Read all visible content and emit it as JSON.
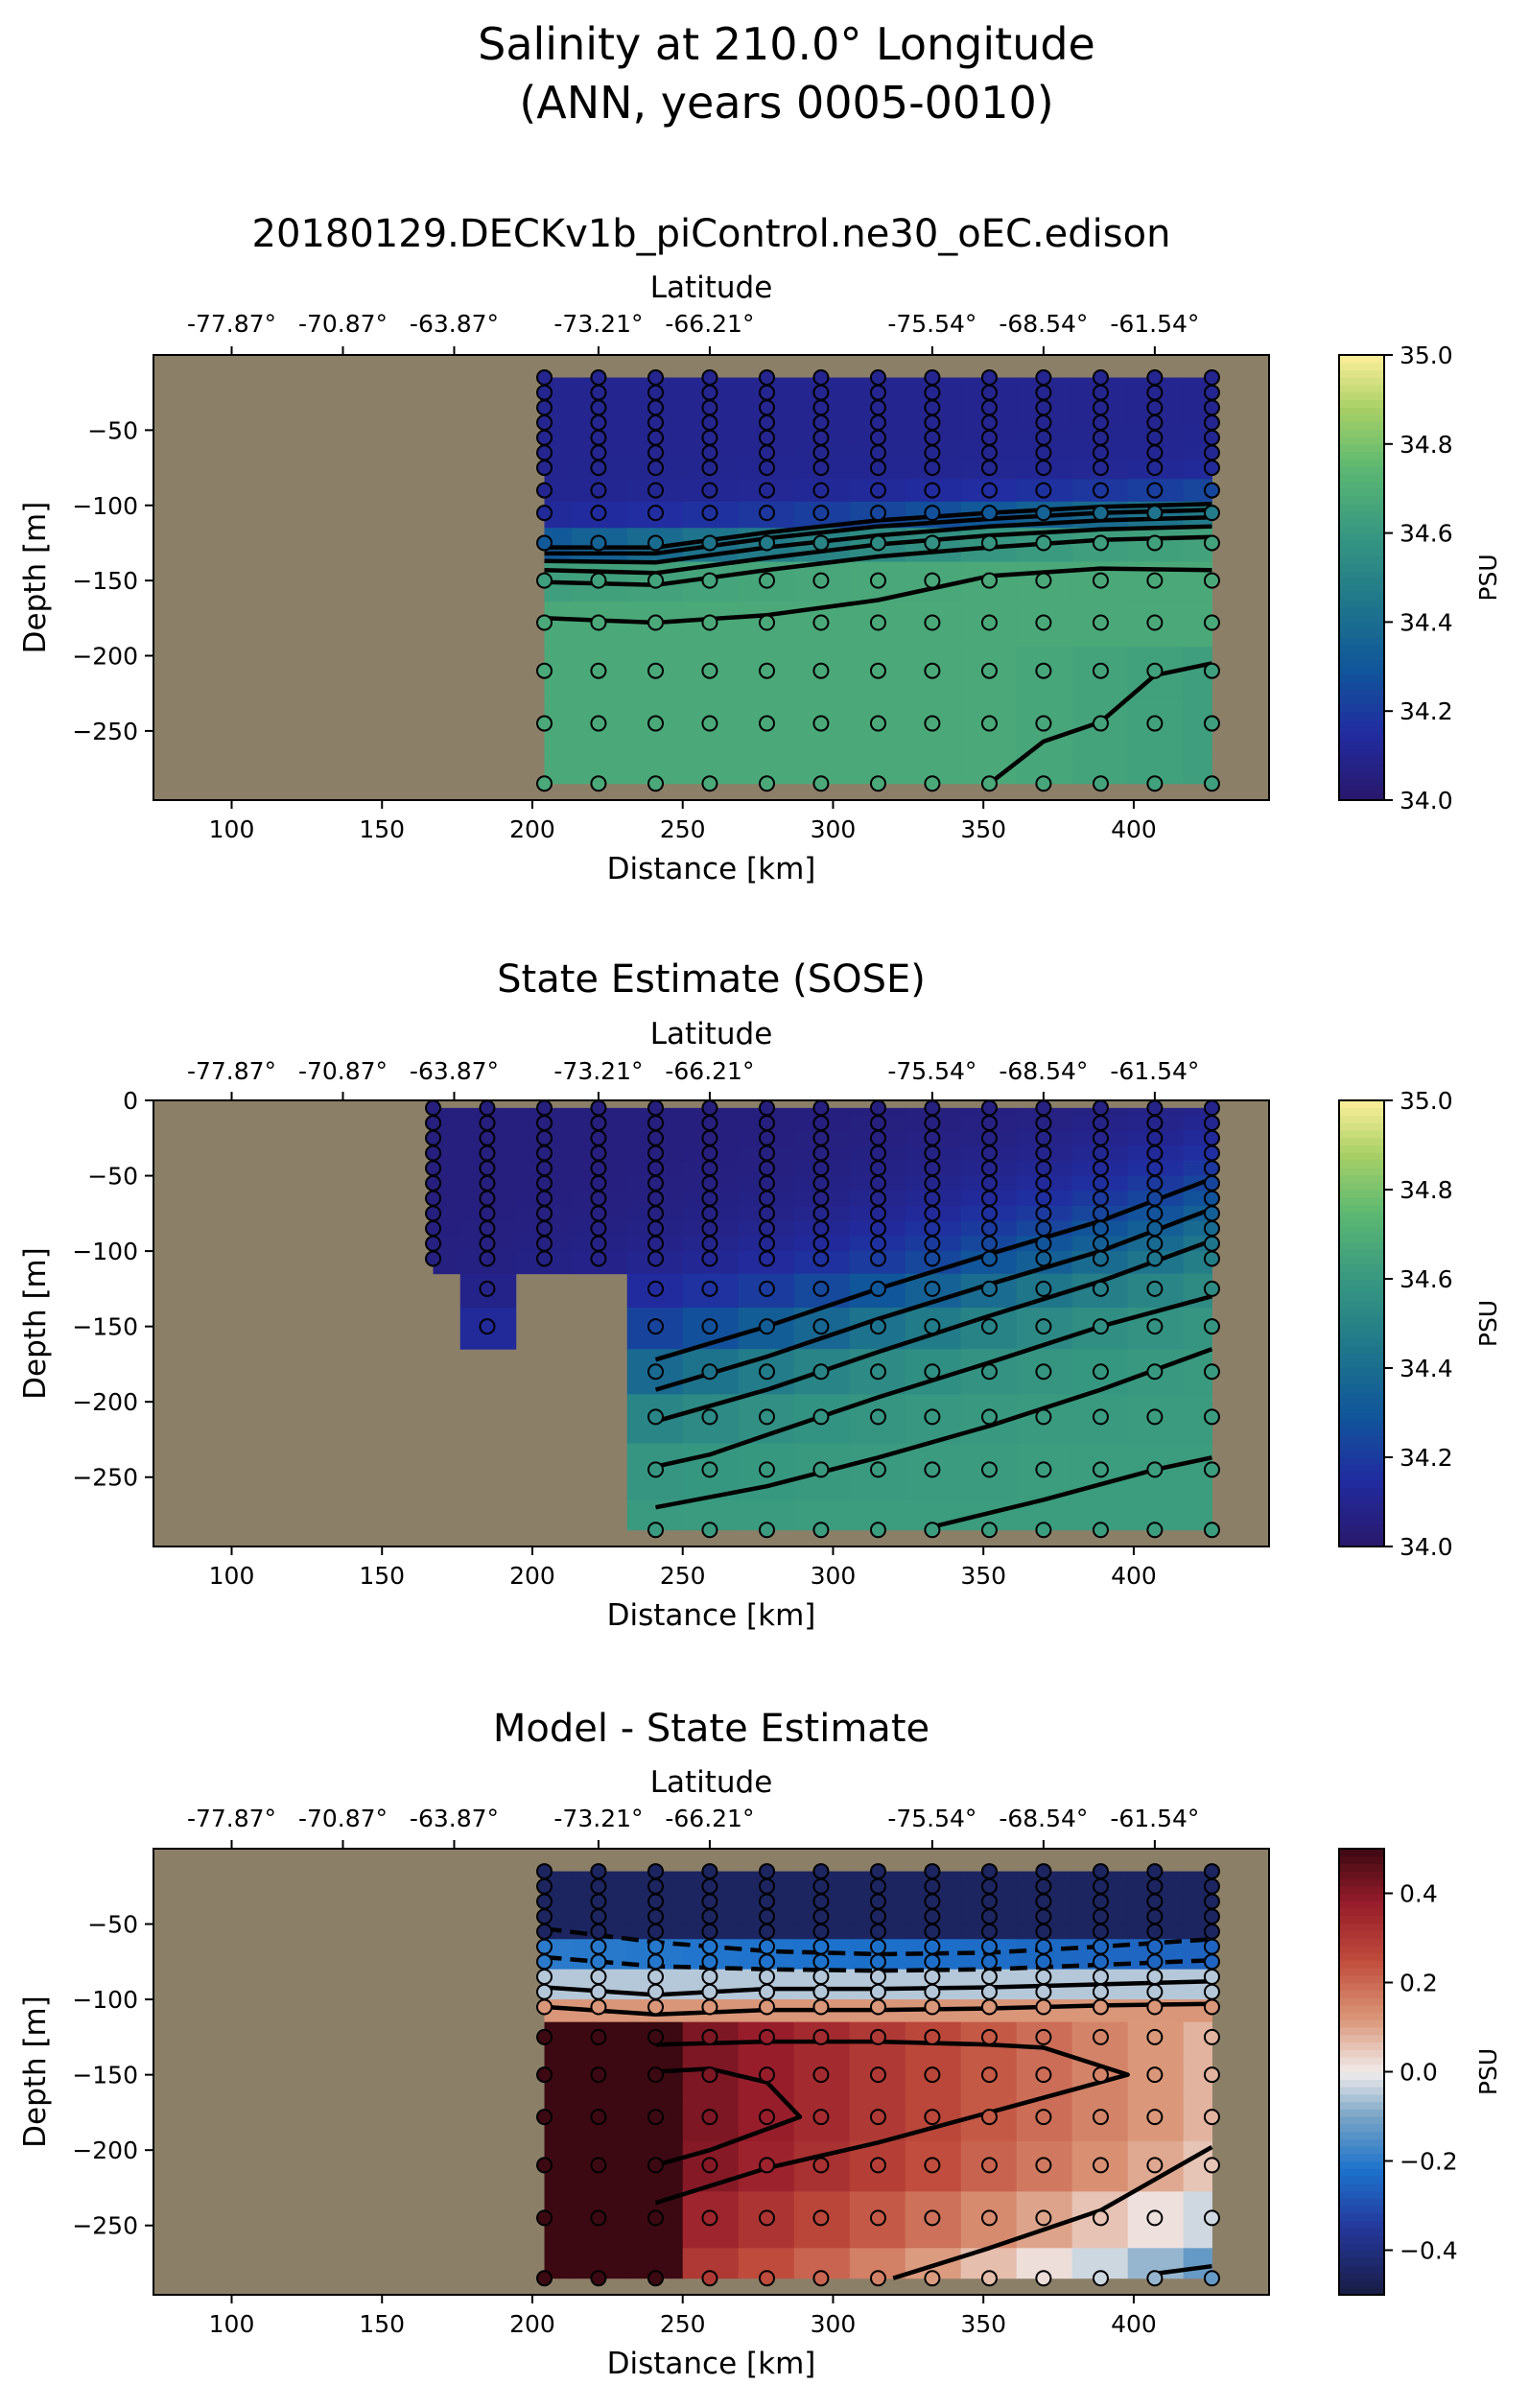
{
  "figure": {
    "title_line1": "Salinity at 210.0° Longitude",
    "title_line2": "(ANN, years 0005-0010)"
  },
  "colors": {
    "land": "#8c7f68",
    "dot_edge": "#000000",
    "contour": "#000000"
  },
  "chart_data": [
    {
      "type": "heatmap",
      "id": "model",
      "title": "20180129.DECKv1b_piControl.ne30_oEC.edison",
      "xlabel": "Distance [km]",
      "ylabel": "Depth [m]",
      "top_axis_label": "Latitude",
      "top_ticks": [
        {
          "x": 100,
          "label": "-77.87°"
        },
        {
          "x": 137,
          "label": "-70.87°"
        },
        {
          "x": 174,
          "label": "-63.87°"
        },
        {
          "x": 222,
          "label": "-73.21°"
        },
        {
          "x": 259,
          "label": "-66.21°"
        },
        {
          "x": 333,
          "label": "-75.54°"
        },
        {
          "x": 370,
          "label": "-68.54°"
        },
        {
          "x": 407,
          "label": "-61.54°"
        }
      ],
      "xlim": [
        74,
        445
      ],
      "ylim": [
        -296,
        0
      ],
      "xticks": [
        100,
        150,
        200,
        250,
        300,
        350,
        400
      ],
      "yticks": [
        -50,
        -100,
        -150,
        -200,
        -250
      ],
      "colorbar": {
        "label": "PSU",
        "min": 34.0,
        "max": 35.0,
        "ticks": [
          "34.0",
          "34.2",
          "34.4",
          "34.6",
          "34.8",
          "35.0"
        ],
        "cmap": "haline"
      },
      "stations_x": [
        204,
        222,
        241,
        259,
        278,
        296,
        315,
        333,
        352,
        370,
        389,
        407,
        426
      ],
      "depths": [
        -15,
        -25,
        -35,
        -45,
        -55,
        -65,
        -75,
        -90,
        -105,
        -125,
        -150,
        -178,
        -210,
        -245,
        -285
      ],
      "first_valid_depth_index": [
        0,
        0,
        0,
        0,
        0,
        0,
        0,
        0,
        0,
        0,
        0,
        0,
        0
      ],
      "last_valid_depth_index": [
        14,
        14,
        14,
        14,
        14,
        14,
        14,
        14,
        14,
        14,
        14,
        14,
        14
      ],
      "field": {
        "type": "thermocline",
        "surface": 34.1,
        "deep": 34.68,
        "tc_start": 130,
        "tc_end": 100,
        "width": 35
      },
      "contours": [
        [
          [
            204,
            -128
          ],
          [
            241,
            -128
          ],
          [
            278,
            -118
          ],
          [
            315,
            -110
          ],
          [
            352,
            -105
          ],
          [
            389,
            -101
          ],
          [
            426,
            -99
          ]
        ],
        [
          [
            204,
            -132
          ],
          [
            241,
            -132
          ],
          [
            278,
            -122
          ],
          [
            315,
            -114
          ],
          [
            352,
            -109
          ],
          [
            389,
            -105
          ],
          [
            426,
            -103
          ]
        ],
        [
          [
            204,
            -137
          ],
          [
            241,
            -138
          ],
          [
            278,
            -128
          ],
          [
            315,
            -120
          ],
          [
            352,
            -114
          ],
          [
            389,
            -110
          ],
          [
            426,
            -108
          ]
        ],
        [
          [
            204,
            -143
          ],
          [
            241,
            -145
          ],
          [
            278,
            -135
          ],
          [
            315,
            -126
          ],
          [
            352,
            -120
          ],
          [
            389,
            -116
          ],
          [
            426,
            -114
          ]
        ],
        [
          [
            204,
            -151
          ],
          [
            241,
            -153
          ],
          [
            278,
            -143
          ],
          [
            315,
            -134
          ],
          [
            352,
            -128
          ],
          [
            389,
            -123
          ],
          [
            426,
            -121
          ]
        ],
        [
          [
            204,
            -175
          ],
          [
            241,
            -178
          ],
          [
            278,
            -173
          ],
          [
            315,
            -163
          ],
          [
            352,
            -147
          ],
          [
            389,
            -142
          ],
          [
            426,
            -143
          ]
        ],
        [
          [
            352,
            -285
          ],
          [
            370,
            -257
          ],
          [
            389,
            -244
          ],
          [
            407,
            -213
          ],
          [
            426,
            -205
          ]
        ]
      ]
    },
    {
      "type": "heatmap",
      "id": "sose",
      "title": "State Estimate (SOSE)",
      "xlabel": "Distance [km]",
      "ylabel": "Depth [m]",
      "top_axis_label": "Latitude",
      "top_ticks": [
        {
          "x": 100,
          "label": "-77.87°"
        },
        {
          "x": 137,
          "label": "-70.87°"
        },
        {
          "x": 174,
          "label": "-63.87°"
        },
        {
          "x": 222,
          "label": "-73.21°"
        },
        {
          "x": 259,
          "label": "-66.21°"
        },
        {
          "x": 333,
          "label": "-75.54°"
        },
        {
          "x": 370,
          "label": "-68.54°"
        },
        {
          "x": 407,
          "label": "-61.54°"
        }
      ],
      "xlim": [
        74,
        445
      ],
      "ylim": [
        -296,
        0
      ],
      "xticks": [
        100,
        150,
        200,
        250,
        300,
        350,
        400
      ],
      "yticks": [
        0,
        -50,
        -100,
        -150,
        -200,
        -250
      ],
      "colorbar": {
        "label": "PSU",
        "min": 34.0,
        "max": 35.0,
        "ticks": [
          "34.0",
          "34.2",
          "34.4",
          "34.6",
          "34.8",
          "35.0"
        ],
        "cmap": "haline"
      },
      "stations_x": [
        167,
        185,
        204,
        222,
        241,
        259,
        278,
        296,
        315,
        333,
        352,
        370,
        389,
        407,
        426
      ],
      "depths": [
        -5,
        -15,
        -25,
        -35,
        -45,
        -55,
        -65,
        -75,
        -85,
        -95,
        -105,
        -125,
        -150,
        -180,
        -210,
        -245,
        -285
      ],
      "first_valid_depth_index": [
        0,
        0,
        0,
        0,
        0,
        0,
        0,
        0,
        0,
        0,
        0,
        0,
        0,
        0,
        0
      ],
      "last_valid_depth_index": [
        10,
        12,
        10,
        10,
        16,
        16,
        16,
        16,
        16,
        16,
        16,
        16,
        16,
        16,
        16
      ],
      "field": {
        "type": "tilted",
        "surface": 34.05,
        "deep": 34.62,
        "tc_start": 190,
        "tc_end": 75,
        "width": 110
      },
      "contours": [
        [
          [
            241,
            -172
          ],
          [
            278,
            -150
          ],
          [
            315,
            -125
          ],
          [
            352,
            -102
          ],
          [
            389,
            -80
          ],
          [
            426,
            -52
          ]
        ],
        [
          [
            241,
            -192
          ],
          [
            278,
            -170
          ],
          [
            315,
            -145
          ],
          [
            352,
            -122
          ],
          [
            389,
            -100
          ],
          [
            426,
            -72
          ]
        ],
        [
          [
            241,
            -213
          ],
          [
            278,
            -192
          ],
          [
            315,
            -167
          ],
          [
            352,
            -143
          ],
          [
            389,
            -120
          ],
          [
            426,
            -93
          ]
        ],
        [
          [
            241,
            -243
          ],
          [
            259,
            -235
          ],
          [
            278,
            -222
          ],
          [
            315,
            -197
          ],
          [
            352,
            -174
          ],
          [
            389,
            -150
          ],
          [
            426,
            -130
          ]
        ],
        [
          [
            241,
            -270
          ],
          [
            278,
            -256
          ],
          [
            315,
            -237
          ],
          [
            352,
            -216
          ],
          [
            389,
            -192
          ],
          [
            426,
            -165
          ]
        ],
        [
          [
            333,
            -283
          ],
          [
            370,
            -265
          ],
          [
            407,
            -245
          ],
          [
            426,
            -237
          ]
        ]
      ]
    },
    {
      "type": "heatmap",
      "id": "diff",
      "title": "Model - State Estimate",
      "xlabel": "Distance [km]",
      "ylabel": "Depth [m]",
      "top_axis_label": "Latitude",
      "top_ticks": [
        {
          "x": 100,
          "label": "-77.87°"
        },
        {
          "x": 137,
          "label": "-70.87°"
        },
        {
          "x": 174,
          "label": "-63.87°"
        },
        {
          "x": 222,
          "label": "-73.21°"
        },
        {
          "x": 259,
          "label": "-66.21°"
        },
        {
          "x": 333,
          "label": "-75.54°"
        },
        {
          "x": 370,
          "label": "-68.54°"
        },
        {
          "x": 407,
          "label": "-61.54°"
        }
      ],
      "xlim": [
        74,
        445
      ],
      "ylim": [
        -296,
        0
      ],
      "xticks": [
        100,
        150,
        200,
        250,
        300,
        350,
        400
      ],
      "yticks": [
        -50,
        -100,
        -150,
        -200,
        -250
      ],
      "colorbar": {
        "label": "PSU",
        "min": -0.5,
        "max": 0.5,
        "ticks": [
          "−0.4",
          "−0.2",
          "0.0",
          "0.2",
          "0.4"
        ],
        "tick_values": [
          -0.4,
          -0.2,
          0.0,
          0.2,
          0.4
        ],
        "cmap": "balance"
      },
      "stations_x": [
        204,
        222,
        241,
        259,
        278,
        296,
        315,
        333,
        352,
        370,
        389,
        407,
        426
      ],
      "depths": [
        -15,
        -25,
        -35,
        -45,
        -55,
        -65,
        -75,
        -85,
        -95,
        -105,
        -125,
        -150,
        -178,
        -210,
        -245,
        -285
      ],
      "first_valid_depth_index": [
        0,
        0,
        0,
        0,
        0,
        0,
        0,
        0,
        0,
        0,
        0,
        0,
        0
      ],
      "last_valid_depth_index": [
        15,
        15,
        15,
        15,
        15,
        15,
        15,
        15,
        15,
        15,
        15,
        15,
        15
      ],
      "field": {
        "type": "difference"
      },
      "contours": [
        [
          [
            204,
            -53
          ],
          [
            241,
            -62
          ],
          [
            278,
            -68
          ],
          [
            315,
            -70
          ],
          [
            352,
            -69
          ],
          [
            389,
            -65
          ],
          [
            426,
            -60
          ]
        ],
        [
          [
            204,
            -72
          ],
          [
            241,
            -78
          ],
          [
            278,
            -80
          ],
          [
            315,
            -81
          ],
          [
            352,
            -80
          ],
          [
            389,
            -77
          ],
          [
            426,
            -74
          ]
        ],
        [
          [
            204,
            -92
          ],
          [
            241,
            -97
          ],
          [
            278,
            -93
          ],
          [
            315,
            -93
          ],
          [
            352,
            -92
          ],
          [
            389,
            -90
          ],
          [
            426,
            -88
          ]
        ],
        [
          [
            204,
            -105
          ],
          [
            241,
            -110
          ],
          [
            278,
            -107
          ],
          [
            315,
            -107
          ],
          [
            352,
            -106
          ],
          [
            389,
            -104
          ],
          [
            426,
            -103
          ]
        ],
        [
          [
            241,
            -130
          ],
          [
            278,
            -128
          ],
          [
            315,
            -128
          ],
          [
            352,
            -130
          ],
          [
            370,
            -132
          ],
          [
            398,
            -150
          ],
          [
            352,
            -175
          ],
          [
            315,
            -195
          ],
          [
            278,
            -212
          ],
          [
            241,
            -235
          ]
        ],
        [
          [
            241,
            -148
          ],
          [
            259,
            -146
          ],
          [
            278,
            -155
          ],
          [
            289,
            -178
          ],
          [
            259,
            -200
          ],
          [
            241,
            -210
          ]
        ],
        [
          [
            320,
            -285
          ],
          [
            352,
            -265
          ],
          [
            389,
            -240
          ],
          [
            426,
            -198
          ]
        ],
        [
          [
            407,
            -282
          ],
          [
            426,
            -277
          ]
        ]
      ]
    }
  ]
}
